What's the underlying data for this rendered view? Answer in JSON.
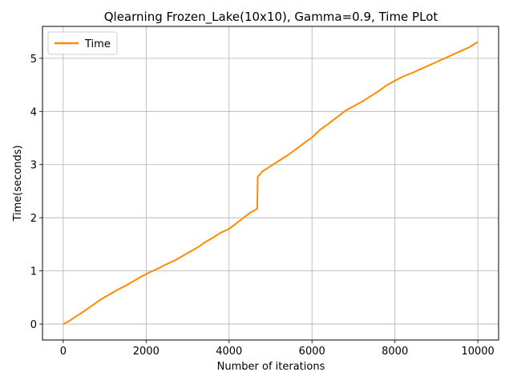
{
  "chart_data": {
    "type": "line",
    "title": "Qlearning Frozen_Lake(10x10),  Gamma=0.9, Time PLot",
    "xlabel": "Number of iterations",
    "ylabel": "Time(seconds)",
    "xlim": [
      -500,
      10500
    ],
    "ylim": [
      -0.3,
      5.6
    ],
    "xticks": [
      0,
      2000,
      4000,
      6000,
      8000,
      10000
    ],
    "xtick_labels": [
      "0",
      "2000",
      "4000",
      "6000",
      "8000",
      "10000"
    ],
    "yticks": [
      0,
      1,
      2,
      3,
      4,
      5
    ],
    "ytick_labels": [
      "0",
      "1",
      "2",
      "3",
      "4",
      "5"
    ],
    "grid": true,
    "legend_position": "top-left",
    "series": [
      {
        "name": "Time",
        "color": "#ff8c00",
        "x": [
          0,
          150,
          300,
          500,
          700,
          900,
          1100,
          1300,
          1500,
          1700,
          1900,
          2100,
          2300,
          2500,
          2700,
          2900,
          3100,
          3300,
          3400,
          3600,
          3800,
          4000,
          4200,
          4400,
          4500,
          4680,
          4690,
          4800,
          5000,
          5200,
          5400,
          5600,
          5800,
          6000,
          6200,
          6400,
          6600,
          6800,
          7000,
          7200,
          7400,
          7600,
          7800,
          8000,
          8200,
          8400,
          8600,
          8800,
          9000,
          9200,
          9400,
          9600,
          9800,
          10000
        ],
        "y": [
          0,
          0.06,
          0.14,
          0.24,
          0.35,
          0.46,
          0.55,
          0.64,
          0.72,
          0.81,
          0.9,
          0.98,
          1.05,
          1.13,
          1.2,
          1.29,
          1.38,
          1.47,
          1.53,
          1.62,
          1.72,
          1.79,
          1.91,
          2.03,
          2.09,
          2.17,
          2.77,
          2.87,
          2.97,
          3.07,
          3.17,
          3.28,
          3.4,
          3.51,
          3.66,
          3.77,
          3.89,
          4.01,
          4.1,
          4.18,
          4.28,
          4.38,
          4.49,
          4.58,
          4.66,
          4.72,
          4.79,
          4.86,
          4.93,
          5.0,
          5.07,
          5.14,
          5.21,
          5.31
        ]
      }
    ]
  }
}
